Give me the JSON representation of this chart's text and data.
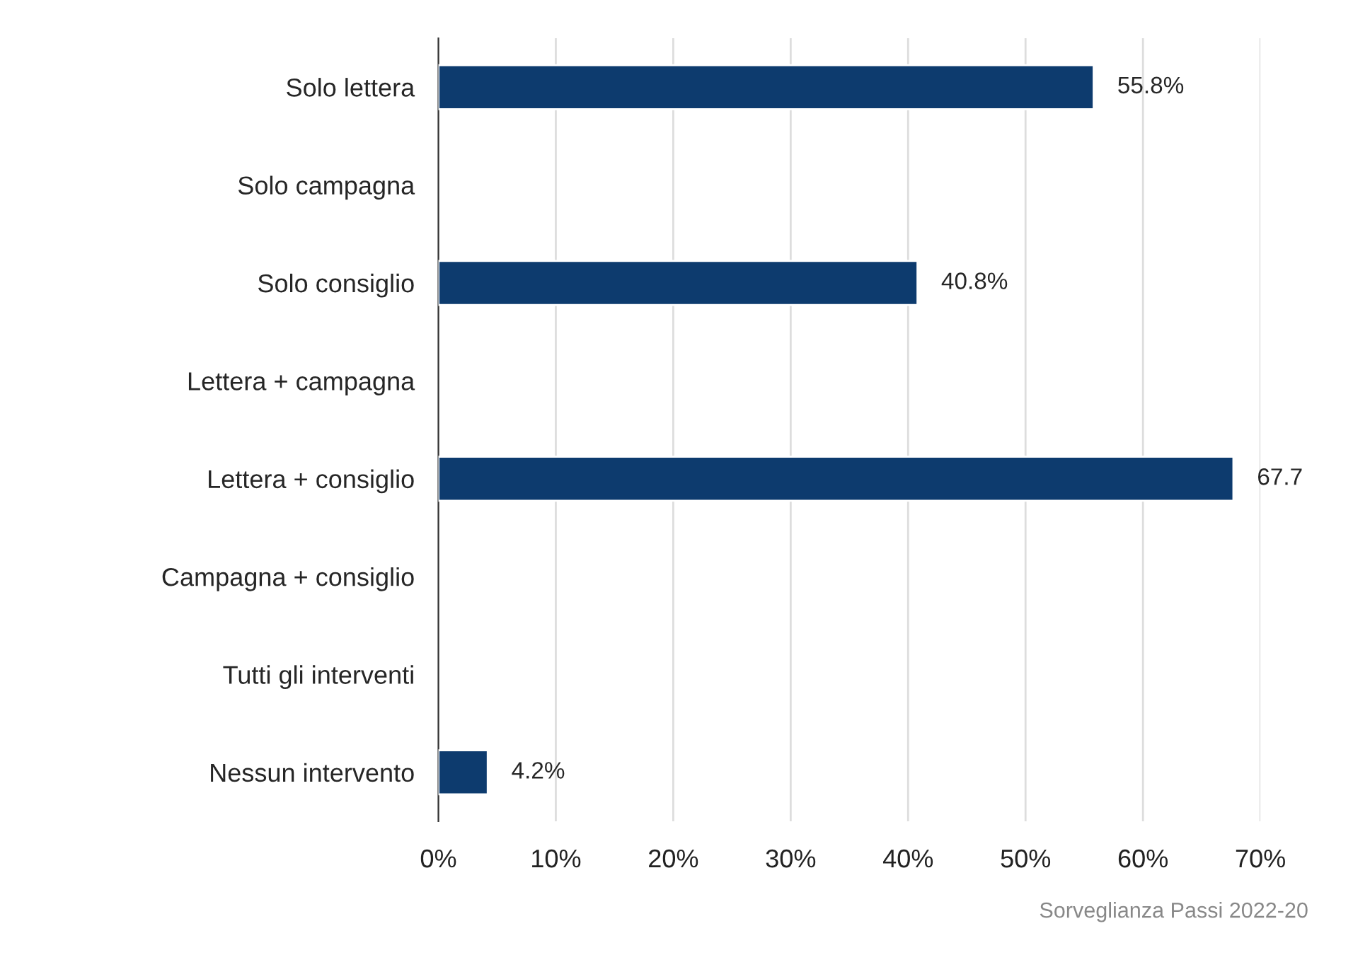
{
  "chart_data": {
    "type": "bar",
    "orientation": "horizontal",
    "categories": [
      "Solo lettera",
      "Solo campagna",
      "Solo consiglio",
      "Lettera + campagna",
      "Lettera + consiglio",
      "Campagna + consiglio",
      "Tutti gli interventi",
      "Nessun intervento"
    ],
    "values": [
      55.8,
      null,
      40.8,
      null,
      67.7,
      null,
      null,
      4.2
    ],
    "value_labels": [
      "55.8%",
      null,
      "40.8%",
      null,
      "67.7",
      null,
      null,
      "4.2%"
    ],
    "color": "#0d3b6e",
    "xlim": [
      0,
      70
    ],
    "xticks": [
      {
        "value": 0,
        "label": "0%"
      },
      {
        "value": 10,
        "label": "10%"
      },
      {
        "value": 20,
        "label": "20%"
      },
      {
        "value": 30,
        "label": "30%"
      },
      {
        "value": 40,
        "label": "40%"
      },
      {
        "value": 50,
        "label": "50%"
      },
      {
        "value": 60,
        "label": "60%"
      },
      {
        "value": 70,
        "label": "70%"
      }
    ],
    "grid": "x",
    "annotations": [
      "Sorveglianza Passi 2022-20"
    ]
  }
}
